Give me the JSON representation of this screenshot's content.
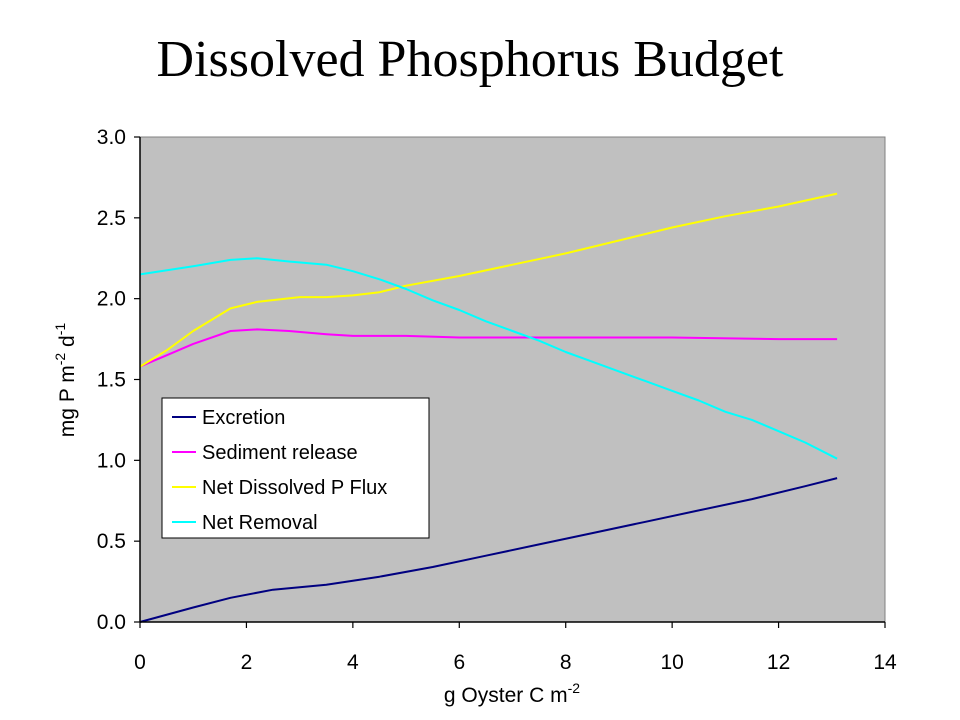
{
  "chart_data": {
    "type": "line",
    "title": "Dissolved Phosphorus Budget",
    "xlabel": "g Oyster C m",
    "xlabel_sup": "-2",
    "ylabel": "mg P m",
    "ylabel_sup1": "-2",
    "ylabel_mid": " d",
    "ylabel_sup2": "-1",
    "xlim": [
      0,
      14
    ],
    "ylim": [
      0.0,
      3.0
    ],
    "xticks": [
      "0",
      "2",
      "4",
      "6",
      "8",
      "10",
      "12",
      "14"
    ],
    "yticks": [
      "0.0",
      "0.5",
      "1.0",
      "1.5",
      "2.0",
      "2.5",
      "3.0"
    ],
    "grid": false,
    "plot_background": "#c0c0c0",
    "legend_position": "center-left",
    "series": [
      {
        "name": "Excretion",
        "color": "#000080",
        "x": [
          0,
          1,
          1.7,
          2.5,
          3.5,
          4.5,
          5.5,
          6.5,
          7.5,
          8.5,
          9.5,
          10.5,
          11.5,
          12.5,
          13.1
        ],
        "y": [
          0.0,
          0.09,
          0.15,
          0.2,
          0.23,
          0.28,
          0.34,
          0.41,
          0.48,
          0.55,
          0.62,
          0.69,
          0.76,
          0.84,
          0.89
        ]
      },
      {
        "name": "Sediment release",
        "color": "#ff00ff",
        "x": [
          0,
          0.5,
          1,
          1.7,
          2.2,
          2.8,
          3.5,
          4,
          5,
          6,
          8,
          10,
          12,
          13.1
        ],
        "y": [
          1.58,
          1.65,
          1.72,
          1.8,
          1.81,
          1.8,
          1.78,
          1.77,
          1.77,
          1.76,
          1.76,
          1.76,
          1.75,
          1.75
        ]
      },
      {
        "name": "Net Dissolved P Flux",
        "color": "#ffff00",
        "x": [
          0,
          0.5,
          1,
          1.7,
          2.2,
          3,
          3.5,
          4,
          4.5,
          5,
          6,
          7,
          8,
          9,
          10,
          11,
          12,
          13.1
        ],
        "y": [
          1.58,
          1.68,
          1.8,
          1.94,
          1.98,
          2.01,
          2.01,
          2.02,
          2.04,
          2.08,
          2.14,
          2.21,
          2.28,
          2.36,
          2.44,
          2.51,
          2.57,
          2.65
        ]
      },
      {
        "name": "Net Removal",
        "color": "#00ffff",
        "x": [
          0,
          1,
          1.7,
          2.2,
          2.8,
          3.5,
          4,
          4.5,
          5,
          5.5,
          6,
          6.5,
          7,
          7.5,
          8,
          8.5,
          9,
          9.5,
          10,
          10.5,
          11,
          11.5,
          12,
          12.5,
          13.1
        ],
        "y": [
          2.15,
          2.2,
          2.24,
          2.25,
          2.23,
          2.21,
          2.17,
          2.12,
          2.06,
          1.99,
          1.93,
          1.86,
          1.8,
          1.74,
          1.67,
          1.61,
          1.55,
          1.49,
          1.43,
          1.37,
          1.3,
          1.25,
          1.18,
          1.11,
          1.01
        ]
      }
    ]
  }
}
